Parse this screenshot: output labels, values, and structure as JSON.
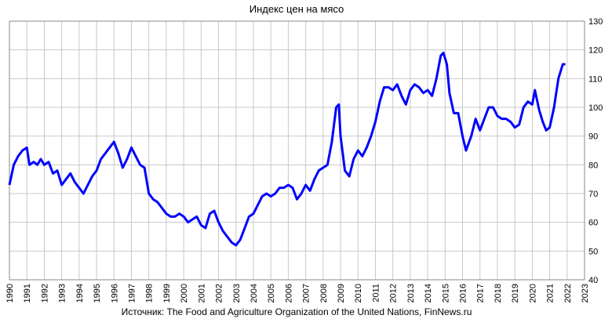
{
  "chart_data": {
    "type": "line",
    "title": "Индекс цен на мясо",
    "source": "Источник: The Food and Agriculture Organization of the United Nations, FinNews.ru",
    "x": [
      1990.0,
      1990.25,
      1990.5,
      1990.75,
      1991.0,
      1991.15,
      1991.4,
      1991.6,
      1991.8,
      1992.0,
      1992.25,
      1992.5,
      1992.75,
      1993.0,
      1993.25,
      1993.5,
      1993.75,
      1994.0,
      1994.25,
      1994.5,
      1994.75,
      1995.0,
      1995.25,
      1995.5,
      1995.75,
      1996.0,
      1996.25,
      1996.5,
      1996.75,
      1997.0,
      1997.25,
      1997.5,
      1997.75,
      1998.0,
      1998.25,
      1998.5,
      1998.75,
      1999.0,
      1999.25,
      1999.5,
      1999.75,
      2000.0,
      2000.25,
      2000.5,
      2000.75,
      2001.0,
      2001.25,
      2001.5,
      2001.75,
      2002.0,
      2002.25,
      2002.5,
      2002.75,
      2003.0,
      2003.25,
      2003.5,
      2003.75,
      2004.0,
      2004.25,
      2004.5,
      2004.75,
      2005.0,
      2005.25,
      2005.5,
      2005.75,
      2006.0,
      2006.25,
      2006.5,
      2006.75,
      2007.0,
      2007.25,
      2007.5,
      2007.75,
      2008.0,
      2008.25,
      2008.5,
      2008.75,
      2008.9,
      2009.0,
      2009.25,
      2009.5,
      2009.75,
      2010.0,
      2010.25,
      2010.5,
      2010.75,
      2011.0,
      2011.25,
      2011.5,
      2011.75,
      2012.0,
      2012.25,
      2012.5,
      2012.75,
      2013.0,
      2013.25,
      2013.5,
      2013.75,
      2014.0,
      2014.25,
      2014.5,
      2014.75,
      2014.9,
      2015.1,
      2015.25,
      2015.5,
      2015.75,
      2016.0,
      2016.2,
      2016.5,
      2016.75,
      2017.0,
      2017.25,
      2017.5,
      2017.75,
      2018.0,
      2018.25,
      2018.5,
      2018.75,
      2019.0,
      2019.25,
      2019.5,
      2019.75,
      2020.0,
      2020.15,
      2020.4,
      2020.6,
      2020.8,
      2021.0,
      2021.25,
      2021.5,
      2021.75,
      2021.9
    ],
    "series": [
      {
        "name": "Индекс цен на мясо",
        "color": "#0000ff",
        "values": [
          73,
          80,
          83,
          85,
          86,
          80,
          81,
          80,
          82,
          80,
          81,
          77,
          78,
          73,
          75,
          77,
          74,
          72,
          70,
          73,
          76,
          78,
          82,
          84,
          86,
          88,
          84,
          79,
          82,
          86,
          83,
          80,
          79,
          70,
          68,
          67,
          65,
          63,
          62,
          62,
          63,
          62,
          60,
          61,
          62,
          59,
          58,
          63,
          64,
          60,
          57,
          55,
          53,
          52,
          54,
          58,
          62,
          63,
          66,
          69,
          70,
          69,
          70,
          72,
          72,
          73,
          72,
          68,
          70,
          73,
          71,
          75,
          78,
          79,
          80,
          88,
          100,
          101,
          90,
          78,
          76,
          82,
          85,
          83,
          86,
          90,
          95,
          102,
          107,
          107,
          106,
          108,
          104,
          101,
          106,
          108,
          107,
          105,
          106,
          104,
          110,
          118,
          119,
          115,
          105,
          98,
          98,
          90,
          85,
          90,
          96,
          92,
          96,
          100,
          100,
          97,
          96,
          96,
          95,
          93,
          94,
          100,
          102,
          101,
          106,
          99,
          95,
          92,
          93,
          100,
          110,
          115,
          115
        ]
      }
    ],
    "xlim": [
      1990,
      2023
    ],
    "xticks": [
      1990,
      1991,
      1992,
      1993,
      1994,
      1995,
      1996,
      1997,
      1998,
      1999,
      2000,
      2001,
      2002,
      2003,
      2004,
      2005,
      2006,
      2007,
      2008,
      2009,
      2010,
      2011,
      2012,
      2013,
      2014,
      2015,
      2016,
      2017,
      2018,
      2019,
      2020,
      2021,
      2022,
      2023
    ],
    "ylim": [
      40,
      130
    ],
    "yticks": [
      40,
      50,
      60,
      70,
      80,
      90,
      100,
      110,
      120,
      130
    ],
    "grid": true
  }
}
